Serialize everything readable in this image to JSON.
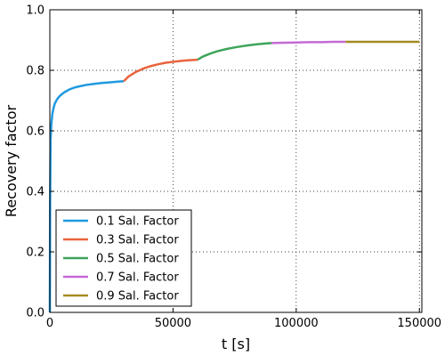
{
  "chart_data": {
    "type": "line",
    "title": "",
    "xlabel": "t [s]",
    "ylabel": "Recovery factor",
    "xlim": [
      0,
      151000
    ],
    "ylim": [
      0.0,
      1.0
    ],
    "xticks": [
      0,
      50000,
      100000,
      150000
    ],
    "xtick_labels": [
      "0",
      "50000",
      "100000",
      "150000"
    ],
    "yticks": [
      0.0,
      0.2,
      0.4,
      0.6,
      0.8,
      1.0
    ],
    "ytick_labels": [
      "0.0",
      "0.2",
      "0.4",
      "0.6",
      "0.8",
      "1.0"
    ],
    "grid": true,
    "legend_position": "bottom-left",
    "series": [
      {
        "name": "0.1 Sal. Factor",
        "color": "#1f9ae0",
        "x": [
          0,
          100,
          300,
          600,
          1000,
          1500,
          2000,
          3000,
          4000,
          5000,
          6000,
          8000,
          10000,
          12000,
          15000,
          18000,
          21000,
          24000,
          27000,
          30000
        ],
        "y": [
          0.0,
          0.35,
          0.57,
          0.62,
          0.655,
          0.675,
          0.69,
          0.705,
          0.715,
          0.722,
          0.728,
          0.737,
          0.743,
          0.747,
          0.752,
          0.755,
          0.758,
          0.76,
          0.762,
          0.764
        ]
      },
      {
        "name": "0.3 Sal. Factor",
        "color": "#e8643c",
        "x": [
          30000,
          32000,
          35000,
          38000,
          41000,
          44000,
          47000,
          50000,
          53000,
          56000,
          60000
        ],
        "y": [
          0.764,
          0.78,
          0.795,
          0.806,
          0.814,
          0.82,
          0.825,
          0.828,
          0.831,
          0.833,
          0.835
        ]
      },
      {
        "name": "0.5 Sal. Factor",
        "color": "#3ea45a",
        "x": [
          60000,
          62000,
          65000,
          68000,
          72000,
          76000,
          80000,
          84000,
          88000,
          90000
        ],
        "y": [
          0.835,
          0.845,
          0.855,
          0.863,
          0.871,
          0.877,
          0.882,
          0.886,
          0.889,
          0.89
        ]
      },
      {
        "name": "0.7 Sal. Factor",
        "color": "#c46ad4",
        "x": [
          90000,
          95000,
          100000,
          105000,
          110000,
          115000,
          120000
        ],
        "y": [
          0.89,
          0.891,
          0.892,
          0.893,
          0.893,
          0.894,
          0.894
        ]
      },
      {
        "name": "0.9 Sal. Factor",
        "color": "#a68a22",
        "x": [
          120000,
          130000,
          140000,
          150000
        ],
        "y": [
          0.894,
          0.894,
          0.894,
          0.894
        ]
      }
    ]
  }
}
